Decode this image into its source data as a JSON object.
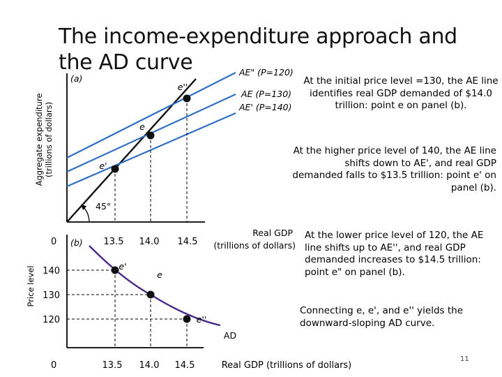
{
  "title": "The income-expenditure approach and the AD curve",
  "page_number": "11",
  "panel_a": {
    "label": "(a)",
    "y_axis_label_line1": "Aggregate expenditure",
    "y_axis_label_line2": "(trillions of dollars)",
    "x_axis_label_line1": "Real GDP",
    "x_axis_label_line2": "(trillions of dollars)",
    "origin_label": "0",
    "x_ticks": [
      "13.5",
      "14.0",
      "14.5"
    ],
    "angle_label": "45°",
    "lines": {
      "ae_120": "AE\" (P=120)",
      "ae_130": "AE (P=130)",
      "ae_140": "AE' (P=140)"
    },
    "points": {
      "e": "e",
      "e_prime": "e'",
      "e_double_prime": "e''"
    }
  },
  "panel_b": {
    "label": "(b)",
    "y_axis_label": "Price level",
    "x_axis_label": "Real GDP (trillions of dollars)",
    "origin_label": "0",
    "x_ticks": [
      "13.5",
      "14.0",
      "14.5"
    ],
    "y_ticks": [
      "140",
      "130",
      "120"
    ],
    "curve_label": "AD",
    "points": {
      "e": "e",
      "e_prime": "e'",
      "e_double_prime": "e''"
    }
  },
  "notes": {
    "note1": "At the initial price level =130, the AE line identifies real GDP demanded of $14.0 trillion: point e on panel (b).",
    "note2": "At the higher price level of 140, the AE line shifts down to AE', and real GDP demanded falls to $13.5 trillion: point e' on panel (b).",
    "note3": "At the lower price level of 120, the AE line shifts up to AE'', and real GDP demanded increases to $14.5 trillion: point e\" on panel (b).",
    "note4": "Connecting e, e', and e'' yields the downward-sloping AD curve."
  },
  "colors": {
    "ae_lines": "#2e6ec4",
    "ad_curve": "#4a2a8a",
    "guides": "#000000"
  }
}
